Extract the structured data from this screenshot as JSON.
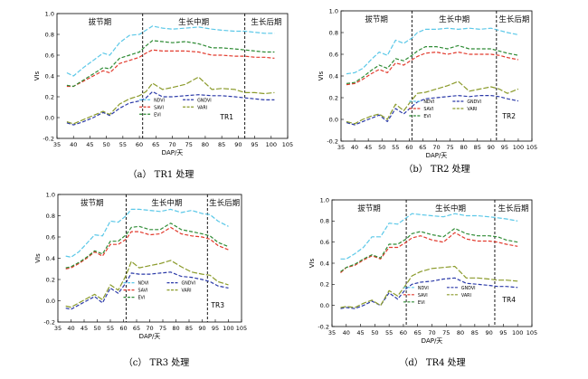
{
  "x_ticks": [
    35,
    40,
    45,
    50,
    55,
    60,
    65,
    70,
    75,
    80,
    85,
    90,
    95,
    100,
    105
  ],
  "y_ticks": [
    -0.2,
    0.0,
    0.2,
    0.4,
    0.6,
    0.8,
    1.0
  ],
  "ylabel": "VIs",
  "xlabel": "DAP/天",
  "stage_labels": [
    "拔节期",
    "生长中期",
    "生长后期"
  ],
  "legend": [
    "NDVI",
    "SAVI",
    "EVI",
    "GNDVI",
    "VARI"
  ],
  "colors": {
    "NDVI": "#5bc8e8",
    "SAVI": "#e23b2e",
    "EVI": "#2e8b34",
    "GNDVI": "#2b3aa8",
    "VARI": "#8a9a2a"
  },
  "chart_data": [
    {
      "type": "line",
      "caption": "（a） TR1 处理",
      "treatment_label": "TR1",
      "xlim": [
        35,
        105
      ],
      "ylim": [
        -0.2,
        1.0
      ],
      "stage_boundaries": [
        61,
        92
      ],
      "series": [
        {
          "name": "NDVI",
          "x": [
            38,
            40,
            43,
            46,
            49,
            51,
            54,
            57,
            60,
            62,
            64,
            67,
            70,
            74,
            78,
            82,
            85,
            89,
            92,
            95,
            98,
            101
          ],
          "y": [
            0.43,
            0.4,
            0.48,
            0.55,
            0.62,
            0.6,
            0.72,
            0.79,
            0.8,
            0.84,
            0.88,
            0.86,
            0.85,
            0.86,
            0.87,
            0.85,
            0.84,
            0.83,
            0.83,
            0.82,
            0.81,
            0.81
          ]
        },
        {
          "name": "SAVI",
          "x": [
            38,
            40,
            43,
            46,
            49,
            51,
            54,
            57,
            60,
            62,
            64,
            67,
            70,
            74,
            78,
            82,
            85,
            89,
            92,
            95,
            98,
            101
          ],
          "y": [
            0.3,
            0.3,
            0.35,
            0.4,
            0.45,
            0.43,
            0.52,
            0.55,
            0.58,
            0.62,
            0.65,
            0.64,
            0.64,
            0.64,
            0.63,
            0.6,
            0.6,
            0.59,
            0.59,
            0.58,
            0.58,
            0.57
          ]
        },
        {
          "name": "EVI",
          "x": [
            38,
            40,
            43,
            46,
            49,
            51,
            54,
            57,
            60,
            62,
            64,
            67,
            70,
            74,
            78,
            82,
            85,
            89,
            92,
            95,
            98,
            101
          ],
          "y": [
            0.31,
            0.3,
            0.36,
            0.42,
            0.48,
            0.47,
            0.57,
            0.6,
            0.63,
            0.69,
            0.74,
            0.73,
            0.72,
            0.73,
            0.71,
            0.67,
            0.67,
            0.66,
            0.65,
            0.64,
            0.63,
            0.63
          ]
        },
        {
          "name": "GNDVI",
          "x": [
            38,
            40,
            43,
            46,
            49,
            51,
            54,
            57,
            60,
            62,
            64,
            67,
            70,
            74,
            78,
            82,
            85,
            89,
            92,
            95,
            98,
            101
          ],
          "y": [
            -0.05,
            -0.07,
            -0.04,
            0.0,
            0.05,
            0.02,
            0.09,
            0.14,
            0.16,
            0.19,
            0.25,
            0.2,
            0.2,
            0.21,
            0.22,
            0.21,
            0.21,
            0.2,
            0.19,
            0.18,
            0.17,
            0.17
          ]
        },
        {
          "name": "VARI",
          "x": [
            38,
            40,
            43,
            46,
            49,
            51,
            54,
            57,
            60,
            62,
            64,
            67,
            70,
            74,
            78,
            82,
            85,
            89,
            92,
            95,
            98,
            101
          ],
          "y": [
            -0.04,
            -0.06,
            -0.02,
            0.02,
            0.06,
            0.03,
            0.13,
            0.18,
            0.21,
            0.25,
            0.33,
            0.27,
            0.29,
            0.32,
            0.39,
            0.27,
            0.28,
            0.27,
            0.24,
            0.24,
            0.23,
            0.24
          ]
        }
      ]
    },
    {
      "type": "line",
      "caption": "（b） TR2 处理",
      "treatment_label": "TR2",
      "xlim": [
        35,
        105
      ],
      "ylim": [
        -0.2,
        1.0
      ],
      "stage_boundaries": [
        61,
        92
      ],
      "series": [
        {
          "name": "NDVI",
          "x": [
            37,
            40,
            43,
            46,
            49,
            52,
            55,
            58,
            61,
            63,
            66,
            70,
            74,
            78,
            82,
            86,
            90,
            93,
            96,
            100
          ],
          "y": [
            0.42,
            0.43,
            0.47,
            0.55,
            0.62,
            0.59,
            0.73,
            0.7,
            0.75,
            0.8,
            0.83,
            0.83,
            0.84,
            0.83,
            0.84,
            0.83,
            0.84,
            0.82,
            0.8,
            0.78
          ]
        },
        {
          "name": "SAVI",
          "x": [
            37,
            40,
            43,
            46,
            49,
            52,
            55,
            58,
            61,
            63,
            66,
            70,
            74,
            78,
            82,
            86,
            90,
            93,
            96,
            100
          ],
          "y": [
            0.32,
            0.33,
            0.37,
            0.42,
            0.46,
            0.43,
            0.52,
            0.5,
            0.55,
            0.58,
            0.61,
            0.62,
            0.6,
            0.62,
            0.6,
            0.6,
            0.6,
            0.59,
            0.57,
            0.55
          ]
        },
        {
          "name": "EVI",
          "x": [
            37,
            40,
            43,
            46,
            49,
            52,
            55,
            58,
            61,
            63,
            66,
            70,
            74,
            78,
            82,
            86,
            90,
            93,
            96,
            100
          ],
          "y": [
            0.33,
            0.34,
            0.39,
            0.45,
            0.5,
            0.47,
            0.56,
            0.54,
            0.59,
            0.63,
            0.67,
            0.67,
            0.65,
            0.68,
            0.65,
            0.65,
            0.65,
            0.63,
            0.61,
            0.59
          ]
        },
        {
          "name": "GNDVI",
          "x": [
            37,
            40,
            43,
            46,
            49,
            52,
            55,
            58,
            61,
            63,
            66,
            70,
            74,
            78,
            82,
            86,
            90,
            93,
            96,
            100
          ],
          "y": [
            -0.03,
            -0.05,
            -0.02,
            0.01,
            0.04,
            -0.02,
            0.1,
            0.05,
            0.12,
            0.16,
            0.19,
            0.2,
            0.21,
            0.22,
            0.21,
            0.22,
            0.22,
            0.21,
            0.19,
            0.17
          ]
        },
        {
          "name": "VARI",
          "x": [
            37,
            40,
            43,
            46,
            49,
            52,
            55,
            58,
            61,
            63,
            66,
            70,
            74,
            78,
            82,
            86,
            90,
            93,
            96,
            100
          ],
          "y": [
            -0.02,
            -0.04,
            0.0,
            0.03,
            0.05,
            0.0,
            0.14,
            0.08,
            0.18,
            0.24,
            0.25,
            0.28,
            0.31,
            0.35,
            0.26,
            0.28,
            0.3,
            0.28,
            0.24,
            0.28
          ]
        }
      ]
    },
    {
      "type": "line",
      "caption": "（c） TR3 处理",
      "treatment_label": "TR3",
      "xlim": [
        35,
        105
      ],
      "ylim": [
        -0.2,
        1.0
      ],
      "stage_boundaries": [
        61,
        92
      ],
      "series": [
        {
          "name": "NDVI",
          "x": [
            38,
            40,
            43,
            46,
            49,
            52,
            55,
            58,
            61,
            63,
            66,
            70,
            74,
            78,
            82,
            86,
            90,
            93,
            96,
            100
          ],
          "y": [
            0.42,
            0.41,
            0.46,
            0.54,
            0.62,
            0.61,
            0.75,
            0.74,
            0.8,
            0.86,
            0.86,
            0.85,
            0.84,
            0.86,
            0.83,
            0.85,
            0.82,
            0.81,
            0.75,
            0.7
          ]
        },
        {
          "name": "SAVI",
          "x": [
            38,
            40,
            43,
            46,
            49,
            52,
            55,
            58,
            61,
            63,
            66,
            70,
            74,
            78,
            82,
            86,
            90,
            93,
            96,
            100
          ],
          "y": [
            0.3,
            0.31,
            0.35,
            0.4,
            0.46,
            0.42,
            0.53,
            0.53,
            0.58,
            0.65,
            0.65,
            0.62,
            0.63,
            0.69,
            0.63,
            0.61,
            0.6,
            0.58,
            0.52,
            0.48
          ]
        },
        {
          "name": "EVI",
          "x": [
            38,
            40,
            43,
            46,
            49,
            52,
            55,
            58,
            61,
            63,
            66,
            70,
            74,
            78,
            82,
            86,
            90,
            93,
            96,
            100
          ],
          "y": [
            0.31,
            0.32,
            0.36,
            0.41,
            0.47,
            0.44,
            0.56,
            0.56,
            0.62,
            0.69,
            0.7,
            0.67,
            0.67,
            0.73,
            0.67,
            0.65,
            0.63,
            0.61,
            0.55,
            0.51
          ]
        },
        {
          "name": "GNDVI",
          "x": [
            38,
            40,
            43,
            46,
            49,
            52,
            55,
            58,
            61,
            63,
            66,
            70,
            74,
            78,
            82,
            86,
            90,
            93,
            96,
            100
          ],
          "y": [
            -0.07,
            -0.08,
            -0.04,
            0.0,
            0.04,
            -0.02,
            0.12,
            0.07,
            0.17,
            0.26,
            0.25,
            0.25,
            0.26,
            0.27,
            0.23,
            0.22,
            0.2,
            0.18,
            0.14,
            0.12
          ]
        },
        {
          "name": "VARI",
          "x": [
            38,
            40,
            43,
            46,
            49,
            52,
            55,
            58,
            61,
            63,
            66,
            70,
            74,
            78,
            82,
            86,
            90,
            93,
            96,
            100
          ],
          "y": [
            -0.05,
            -0.06,
            -0.02,
            0.02,
            0.06,
            0.01,
            0.15,
            0.1,
            0.24,
            0.37,
            0.31,
            0.33,
            0.35,
            0.38,
            0.32,
            0.27,
            0.25,
            0.24,
            0.18,
            0.15
          ]
        }
      ]
    },
    {
      "type": "line",
      "caption": "（d） TR4 处理",
      "treatment_label": "TR4",
      "xlim": [
        35,
        105
      ],
      "ylim": [
        -0.2,
        1.0
      ],
      "stage_boundaries": [
        61,
        92
      ],
      "series": [
        {
          "name": "NDVI",
          "x": [
            38,
            40,
            43,
            46,
            49,
            52,
            55,
            58,
            61,
            63,
            66,
            70,
            74,
            78,
            82,
            86,
            90,
            93,
            96,
            100
          ],
          "y": [
            0.44,
            0.44,
            0.49,
            0.55,
            0.65,
            0.65,
            0.78,
            0.77,
            0.83,
            0.87,
            0.86,
            0.85,
            0.84,
            0.87,
            0.85,
            0.85,
            0.84,
            0.83,
            0.82,
            0.8
          ]
        },
        {
          "name": "SAVI",
          "x": [
            38,
            40,
            43,
            46,
            49,
            52,
            55,
            58,
            61,
            63,
            66,
            70,
            74,
            78,
            82,
            86,
            90,
            93,
            96,
            100
          ],
          "y": [
            0.31,
            0.36,
            0.38,
            0.43,
            0.47,
            0.44,
            0.55,
            0.55,
            0.6,
            0.64,
            0.66,
            0.62,
            0.6,
            0.69,
            0.63,
            0.61,
            0.61,
            0.6,
            0.58,
            0.56
          ]
        },
        {
          "name": "EVI",
          "x": [
            38,
            40,
            43,
            46,
            49,
            52,
            55,
            58,
            61,
            63,
            66,
            70,
            74,
            78,
            82,
            86,
            90,
            93,
            96,
            100
          ],
          "y": [
            0.32,
            0.36,
            0.39,
            0.44,
            0.48,
            0.45,
            0.58,
            0.58,
            0.63,
            0.68,
            0.7,
            0.67,
            0.65,
            0.73,
            0.68,
            0.66,
            0.66,
            0.65,
            0.62,
            0.6
          ]
        },
        {
          "name": "GNDVI",
          "x": [
            38,
            40,
            43,
            46,
            49,
            52,
            55,
            58,
            61,
            63,
            66,
            70,
            74,
            78,
            82,
            86,
            90,
            93,
            96,
            100
          ],
          "y": [
            -0.03,
            -0.02,
            -0.03,
            0.0,
            0.04,
            0.0,
            0.12,
            0.06,
            0.16,
            0.2,
            0.22,
            0.23,
            0.25,
            0.26,
            0.21,
            0.2,
            0.19,
            0.18,
            0.18,
            0.17
          ]
        },
        {
          "name": "VARI",
          "x": [
            38,
            40,
            43,
            46,
            49,
            52,
            55,
            58,
            61,
            63,
            66,
            70,
            74,
            78,
            82,
            86,
            90,
            93,
            96,
            100
          ],
          "y": [
            -0.02,
            -0.01,
            -0.02,
            0.02,
            0.05,
            0.0,
            0.14,
            0.09,
            0.2,
            0.28,
            0.32,
            0.35,
            0.36,
            0.37,
            0.26,
            0.26,
            0.25,
            0.24,
            0.24,
            0.23
          ]
        }
      ]
    }
  ]
}
